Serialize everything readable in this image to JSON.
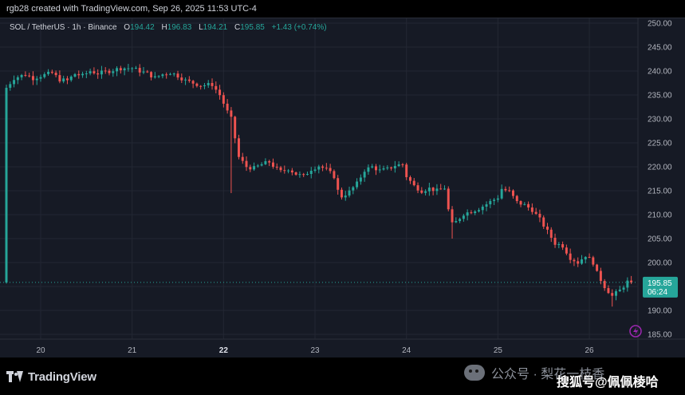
{
  "header": {
    "credit": "rgb28 created with TradingView.com, Sep 26, 2025 11:53 UTC-4"
  },
  "legend": {
    "symbol": "SOL / TetherUS · 1h · Binance",
    "open_label": "O",
    "open": "194.42",
    "high_label": "H",
    "high": "196.83",
    "low_label": "L",
    "low": "194.21",
    "close_label": "C",
    "close": "195.85",
    "change": "+1.43 (+0.74%)"
  },
  "price_tag": {
    "price": "195.85",
    "countdown": "06:24"
  },
  "footer": {
    "logo_text": "TradingView",
    "watermark_1": "公众号 · 梨花一枝香",
    "watermark_2": "搜狐号@佩佩棱哈"
  },
  "colors": {
    "background": "#161a25",
    "grid": "#232733",
    "up": "#26a69a",
    "down": "#ef5350",
    "text": "#b2b5be",
    "bolt_icon": "#9c27b0"
  },
  "chart_data": {
    "type": "candlestick",
    "title": "",
    "xlabel": "",
    "ylabel": "",
    "ylim": [
      184,
      251
    ],
    "y_ticks": [
      250,
      245,
      240,
      235,
      230,
      225,
      220,
      215,
      210,
      205,
      200,
      195,
      190,
      185
    ],
    "y_tick_labels": [
      "250.00",
      "245.00",
      "240.00",
      "235.00",
      "230.00",
      "225.00",
      "220.00",
      "215.00",
      "210.00",
      "205.00",
      "200.00",
      "195.00",
      "190.00",
      "185.00"
    ],
    "x_ticks": [
      {
        "label": "20",
        "hour": 0,
        "bold": false
      },
      {
        "label": "21",
        "hour": 24,
        "bold": false
      },
      {
        "label": "22",
        "hour": 48,
        "bold": true
      },
      {
        "label": "23",
        "hour": 72,
        "bold": false
      },
      {
        "label": "24",
        "hour": 96,
        "bold": false
      },
      {
        "label": "25",
        "hour": 120,
        "bold": false
      },
      {
        "label": "26",
        "hour": 144,
        "bold": false
      }
    ],
    "x_start_hour": -9,
    "x_end_hour": 155.5,
    "grid": true,
    "current_price": 195.85,
    "close_anchors": [
      [
        -9,
        236.5
      ],
      [
        -7,
        238.5
      ],
      [
        -4,
        239.3
      ],
      [
        -2,
        238.5
      ],
      [
        0,
        239.0
      ],
      [
        3,
        239.6
      ],
      [
        5,
        238.2
      ],
      [
        7,
        238.0
      ],
      [
        9,
        239.4
      ],
      [
        11,
        239.0
      ],
      [
        13,
        240.0
      ],
      [
        15,
        239.5
      ],
      [
        18,
        240.0
      ],
      [
        21,
        240.6
      ],
      [
        24,
        240.6
      ],
      [
        26,
        240.0
      ],
      [
        28,
        239.5
      ],
      [
        30,
        238.6
      ],
      [
        32,
        239.3
      ],
      [
        34,
        239.7
      ],
      [
        36,
        239.0
      ],
      [
        38,
        238.0
      ],
      [
        40,
        237.5
      ],
      [
        42,
        237.0
      ],
      [
        45,
        237.2
      ],
      [
        47,
        235.0
      ],
      [
        49,
        231.5
      ],
      [
        50,
        230.0
      ],
      [
        51,
        226.0
      ],
      [
        52,
        222.0
      ],
      [
        54,
        220.0
      ],
      [
        56,
        219.7
      ],
      [
        58,
        220.5
      ],
      [
        60,
        221.0
      ],
      [
        62,
        219.5
      ],
      [
        63,
        219.0
      ],
      [
        65,
        219.6
      ],
      [
        67,
        218.5
      ],
      [
        69,
        218.0
      ],
      [
        71,
        219.5
      ],
      [
        73,
        220.2
      ],
      [
        75,
        219.4
      ],
      [
        77,
        218.0
      ],
      [
        78,
        215.0
      ],
      [
        79,
        213.8
      ],
      [
        81,
        214.8
      ],
      [
        83,
        216.5
      ],
      [
        85,
        219.3
      ],
      [
        87,
        220.0
      ],
      [
        89,
        219.2
      ],
      [
        91,
        219.5
      ],
      [
        93,
        220.3
      ],
      [
        95,
        220.5
      ],
      [
        96,
        218.0
      ],
      [
        98,
        216.0
      ],
      [
        100,
        215.0
      ],
      [
        102,
        215.5
      ],
      [
        104,
        215.0
      ],
      [
        106,
        215.6
      ],
      [
        107,
        211.0
      ],
      [
        108,
        208.0
      ],
      [
        109,
        208.5
      ],
      [
        111,
        210.2
      ],
      [
        113,
        210.7
      ],
      [
        115,
        211.3
      ],
      [
        117,
        212.2
      ],
      [
        118,
        212.7
      ],
      [
        120,
        213.6
      ],
      [
        121,
        215.4
      ],
      [
        123,
        214.8
      ],
      [
        125,
        212.6
      ],
      [
        127,
        212.0
      ],
      [
        129,
        211.0
      ],
      [
        131,
        209.0
      ],
      [
        133,
        206.5
      ],
      [
        135,
        204.0
      ],
      [
        137,
        203.5
      ],
      [
        139,
        201.0
      ],
      [
        141,
        200.0
      ],
      [
        143,
        201.5
      ],
      [
        145,
        200.0
      ],
      [
        146,
        197.8
      ],
      [
        148,
        195.0
      ],
      [
        150,
        193.0
      ],
      [
        152,
        194.2
      ],
      [
        154,
        196.0
      ],
      [
        155,
        195.85
      ]
    ]
  }
}
